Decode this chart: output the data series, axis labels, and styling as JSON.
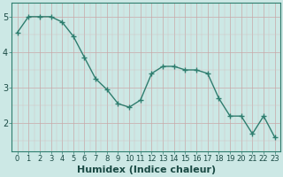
{
  "x": [
    0,
    1,
    2,
    3,
    4,
    5,
    6,
    7,
    8,
    9,
    10,
    11,
    12,
    13,
    14,
    15,
    16,
    17,
    18,
    19,
    20,
    21,
    22,
    23
  ],
  "y": [
    4.55,
    5.0,
    5.0,
    5.0,
    4.85,
    4.45,
    3.85,
    3.25,
    2.95,
    2.55,
    2.45,
    2.65,
    3.4,
    3.6,
    3.6,
    3.5,
    3.5,
    3.4,
    2.7,
    2.2,
    2.2,
    1.7,
    2.2,
    1.6
  ],
  "line_color": "#2e7d6e",
  "marker": "D",
  "marker_size": 2.5,
  "bg_color": "#cce8e5",
  "grid_color_major": "#c8a0a0",
  "grid_color_minor": "#d6c0c0",
  "xlabel": "Humidex (Indice chaleur)",
  "xlabel_fontsize": 8,
  "ylabel_ticks": [
    2,
    3,
    4,
    5
  ],
  "xlim": [
    -0.5,
    23.5
  ],
  "ylim": [
    1.2,
    5.4
  ],
  "xtick_labels": [
    "0",
    "1",
    "2",
    "3",
    "4",
    "5",
    "6",
    "7",
    "8",
    "9",
    "10",
    "11",
    "12",
    "13",
    "14",
    "15",
    "16",
    "17",
    "18",
    "19",
    "20",
    "21",
    "22",
    "23"
  ],
  "tick_fontsize": 6,
  "line_width": 1.0
}
